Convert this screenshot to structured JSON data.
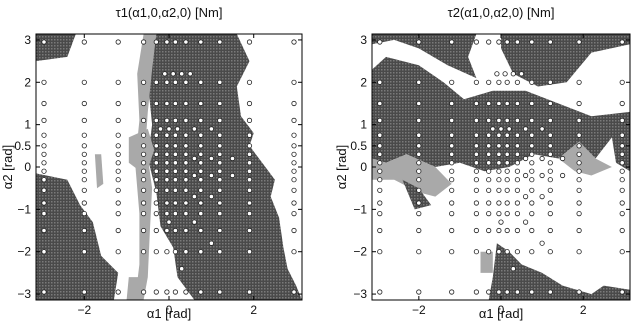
{
  "colors": {
    "dark_fill": "#5e5e5e",
    "light_fill": "#a9a9a9",
    "frame": "#000000",
    "marker_stroke": "#222222",
    "marker_fill": "#ffffff"
  },
  "chart_data": [
    {
      "type": "scatter",
      "title": "τ1(α1,0,α2,0) [Nm]",
      "xlabel": "α1 [rad]",
      "ylabel": "α2 [rad]",
      "xlim": [
        -3.14,
        3.14
      ],
      "ylim": [
        -3.14,
        3.14
      ],
      "xticks": [
        -2,
        0,
        2
      ],
      "xtick_labels": [
        "−2",
        "0",
        "2"
      ],
      "yticks": [
        3,
        2,
        1,
        0.5,
        0,
        -1,
        -2,
        -3
      ],
      "ytick_labels": [
        "3",
        "2",
        "1",
        "0.5",
        "0",
        "−1",
        "−2",
        "−3"
      ],
      "grid": false,
      "regions": [
        {
          "shade": "dark",
          "polygon": [
            [
              -3.14,
              3.14
            ],
            [
              -2.2,
              3.14
            ],
            [
              -2.4,
              2.6
            ],
            [
              -3.14,
              2.5
            ]
          ]
        },
        {
          "shade": "dark",
          "polygon": [
            [
              -0.3,
              3.14
            ],
            [
              1.6,
              3.14
            ],
            [
              1.9,
              2.5
            ],
            [
              1.6,
              1.9
            ],
            [
              1.7,
              1.2
            ],
            [
              2.0,
              0.8
            ],
            [
              1.9,
              0.5
            ],
            [
              2.2,
              0.1
            ],
            [
              2.5,
              -0.3
            ],
            [
              2.4,
              -0.7
            ],
            [
              2.6,
              -1.2
            ],
            [
              2.7,
              -1.9
            ],
            [
              2.8,
              -2.4
            ],
            [
              3.0,
              -2.8
            ],
            [
              3.14,
              -3.14
            ],
            [
              0.6,
              -3.14
            ],
            [
              0.2,
              -2.6
            ],
            [
              0.1,
              -1.9
            ],
            [
              -0.2,
              -1.4
            ],
            [
              -0.3,
              -0.6
            ],
            [
              -0.5,
              0.2
            ],
            [
              -0.4,
              1.0
            ],
            [
              -0.5,
              2.0
            ]
          ]
        },
        {
          "shade": "light",
          "polygon": [
            [
              -0.6,
              3.14
            ],
            [
              -0.3,
              3.14
            ],
            [
              -0.4,
              2.3
            ],
            [
              -0.5,
              1.3
            ],
            [
              -0.55,
              0.6
            ],
            [
              -0.4,
              -0.5
            ],
            [
              -0.45,
              -1.5
            ],
            [
              -0.5,
              -2.6
            ],
            [
              -0.6,
              -3.14
            ],
            [
              -0.8,
              -3.14
            ],
            [
              -0.7,
              -2.3
            ],
            [
              -0.7,
              -1.1
            ],
            [
              -0.8,
              0.1
            ],
            [
              -0.7,
              1.1
            ],
            [
              -0.75,
              2.2
            ]
          ]
        },
        {
          "shade": "light",
          "polygon": [
            [
              -0.95,
              0.7
            ],
            [
              -0.5,
              0.9
            ],
            [
              -0.35,
              0.4
            ],
            [
              -0.55,
              -0.2
            ],
            [
              -0.95,
              0.1
            ]
          ]
        },
        {
          "shade": "dark",
          "polygon": [
            [
              -3.14,
              -0.15
            ],
            [
              -2.4,
              -0.3
            ],
            [
              -2.1,
              -0.9
            ],
            [
              -1.8,
              -1.3
            ],
            [
              -1.6,
              -2.1
            ],
            [
              -1.2,
              -2.5
            ],
            [
              -1.3,
              -3.14
            ],
            [
              -3.14,
              -3.14
            ]
          ]
        },
        {
          "shade": "light",
          "polygon": [
            [
              -1.75,
              0.3
            ],
            [
              -1.6,
              0.3
            ],
            [
              -1.55,
              -0.4
            ],
            [
              -1.7,
              -0.5
            ]
          ]
        },
        {
          "shade": "light",
          "polygon": [
            [
              -0.95,
              -2.6
            ],
            [
              -0.7,
              -2.6
            ],
            [
              -0.6,
              -3.14
            ],
            [
              -1.0,
              -3.14
            ]
          ]
        }
      ],
      "points": {
        "grid_x": [
          -2.95,
          -2.0,
          -1.2,
          -0.6,
          -0.3,
          -0.05,
          0.15,
          0.4,
          0.75,
          1.2,
          1.9,
          2.95
        ],
        "grid_y": [
          2.95,
          2.0,
          1.5,
          1.1,
          0.75,
          0.5,
          0.3,
          0.1,
          -0.1,
          -0.3,
          -0.55,
          -0.85,
          -1.1,
          -1.5,
          -2.0,
          -2.95
        ],
        "extra": [
          [
            -0.1,
            2.2
          ],
          [
            0.1,
            2.2
          ],
          [
            0.3,
            2.2
          ],
          [
            0.5,
            2.2
          ],
          [
            -0.2,
            0.9
          ],
          [
            0.0,
            0.9
          ],
          [
            0.2,
            0.9
          ],
          [
            0.6,
            0.9
          ],
          [
            1.0,
            0.9
          ],
          [
            0.6,
            0.2
          ],
          [
            1.0,
            0.2
          ],
          [
            1.5,
            0.2
          ],
          [
            0.6,
            -0.2
          ],
          [
            1.0,
            -0.2
          ],
          [
            1.5,
            -0.2
          ],
          [
            0.6,
            -0.7
          ],
          [
            1.0,
            -0.7
          ],
          [
            0.0,
            -1.3
          ],
          [
            0.6,
            -1.3
          ],
          [
            1.0,
            -1.8
          ],
          [
            0.3,
            -2.4
          ]
        ]
      }
    },
    {
      "type": "scatter",
      "title": "τ2(α1,0,α2,0) [Nm]",
      "xlabel": "α1 [rad]",
      "ylabel": "α2 [rad]",
      "xlim": [
        -3.14,
        3.14
      ],
      "ylim": [
        -3.14,
        3.14
      ],
      "xticks": [
        -2,
        0,
        2
      ],
      "xtick_labels": [
        "−2",
        "0",
        "2"
      ],
      "yticks": [
        3,
        2,
        1,
        0.5,
        0,
        -1,
        -2,
        -3
      ],
      "ytick_labels": [
        "3",
        "2",
        "1",
        "0.5",
        "0",
        "−1",
        "−2",
        "−3"
      ],
      "grid": false,
      "regions": [
        {
          "shade": "dark",
          "polygon": [
            [
              -3.14,
              3.14
            ],
            [
              -0.6,
              3.14
            ],
            [
              -0.8,
              2.6
            ],
            [
              -0.6,
              2.1
            ],
            [
              -1.3,
              2.4
            ],
            [
              -2.0,
              2.8
            ],
            [
              -2.6,
              3.0
            ],
            [
              -3.14,
              2.9
            ]
          ]
        },
        {
          "shade": "dark",
          "polygon": [
            [
              0.0,
              3.14
            ],
            [
              3.14,
              3.14
            ],
            [
              3.14,
              2.9
            ],
            [
              2.2,
              2.7
            ],
            [
              1.6,
              2.0
            ],
            [
              0.9,
              1.9
            ],
            [
              0.3,
              2.2
            ],
            [
              0.0,
              2.8
            ]
          ]
        },
        {
          "shade": "dark",
          "polygon": [
            [
              -3.14,
              2.3
            ],
            [
              -2.8,
              2.6
            ],
            [
              -2.0,
              2.4
            ],
            [
              -1.4,
              2.0
            ],
            [
              -0.9,
              1.6
            ],
            [
              -0.2,
              1.8
            ],
            [
              0.6,
              1.8
            ],
            [
              1.4,
              1.5
            ],
            [
              2.2,
              1.2
            ],
            [
              3.14,
              1.3
            ],
            [
              3.14,
              0.4
            ],
            [
              2.7,
              0.7
            ],
            [
              2.3,
              0.2
            ],
            [
              1.9,
              0.6
            ],
            [
              1.4,
              0.2
            ],
            [
              0.8,
              0.3
            ],
            [
              0.2,
              0.0
            ],
            [
              -0.4,
              -0.1
            ],
            [
              -1.0,
              0.1
            ],
            [
              -1.6,
              0.0
            ],
            [
              -2.3,
              0.3
            ],
            [
              -2.8,
              0.1
            ],
            [
              -3.14,
              0.2
            ]
          ]
        },
        {
          "shade": "light",
          "polygon": [
            [
              -3.14,
              0.2
            ],
            [
              -2.8,
              0.1
            ],
            [
              -2.3,
              0.3
            ],
            [
              -1.6,
              0.0
            ],
            [
              -1.2,
              -0.4
            ],
            [
              -1.6,
              -0.7
            ],
            [
              -2.0,
              -0.6
            ],
            [
              -2.6,
              -0.3
            ],
            [
              -3.14,
              -0.3
            ]
          ]
        },
        {
          "shade": "dark",
          "polygon": [
            [
              -2.4,
              -0.3
            ],
            [
              -2.0,
              -0.5
            ],
            [
              -1.7,
              -0.9
            ],
            [
              -2.1,
              -1.0
            ]
          ]
        },
        {
          "shade": "light",
          "polygon": [
            [
              1.4,
              0.2
            ],
            [
              1.9,
              0.6
            ],
            [
              2.3,
              0.2
            ],
            [
              2.7,
              0.0
            ],
            [
              2.2,
              -0.2
            ],
            [
              1.8,
              -0.1
            ]
          ]
        },
        {
          "shade": "dark",
          "polygon": [
            [
              2.7,
              0.7
            ],
            [
              3.14,
              0.8
            ],
            [
              3.14,
              -0.1
            ],
            [
              2.8,
              0.1
            ]
          ]
        },
        {
          "shade": "dark",
          "polygon": [
            [
              -0.1,
              -1.8
            ],
            [
              0.2,
              -2.0
            ],
            [
              0.5,
              -2.3
            ],
            [
              1.0,
              -2.5
            ],
            [
              1.5,
              -2.8
            ],
            [
              2.2,
              -3.0
            ],
            [
              2.5,
              -2.8
            ],
            [
              3.14,
              -2.9
            ],
            [
              3.14,
              -3.14
            ],
            [
              -0.3,
              -3.14
            ],
            [
              -0.2,
              -2.6
            ]
          ]
        },
        {
          "shade": "light",
          "polygon": [
            [
              -0.5,
              -2.0
            ],
            [
              -0.2,
              -2.0
            ],
            [
              -0.2,
              -2.5
            ],
            [
              -0.5,
              -2.5
            ]
          ]
        }
      ],
      "points": {
        "grid_x": [
          -2.95,
          -2.0,
          -1.2,
          -0.6,
          -0.3,
          -0.05,
          0.15,
          0.4,
          0.75,
          1.2,
          1.9,
          2.95
        ],
        "grid_y": [
          2.95,
          2.0,
          1.5,
          1.1,
          0.75,
          0.5,
          0.3,
          0.1,
          -0.1,
          -0.3,
          -0.55,
          -0.85,
          -1.1,
          -1.5,
          -2.0,
          -2.95
        ],
        "extra": [
          [
            -0.1,
            2.2
          ],
          [
            0.1,
            2.2
          ],
          [
            0.3,
            2.2
          ],
          [
            0.5,
            2.2
          ],
          [
            -0.2,
            0.9
          ],
          [
            0.0,
            0.9
          ],
          [
            0.2,
            0.9
          ],
          [
            0.6,
            0.9
          ],
          [
            1.0,
            0.9
          ],
          [
            0.6,
            0.2
          ],
          [
            1.0,
            0.2
          ],
          [
            1.5,
            0.2
          ],
          [
            0.6,
            -0.2
          ],
          [
            1.0,
            -0.2
          ],
          [
            1.5,
            -0.2
          ],
          [
            0.6,
            -0.7
          ],
          [
            1.0,
            -0.7
          ],
          [
            0.0,
            -1.3
          ],
          [
            0.6,
            -1.3
          ],
          [
            1.0,
            -1.8
          ],
          [
            0.3,
            -2.4
          ]
        ]
      }
    }
  ]
}
